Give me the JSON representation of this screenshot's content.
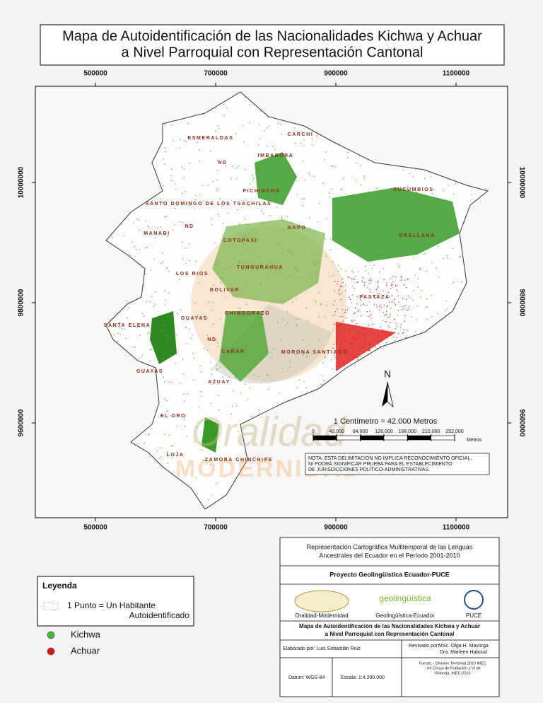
{
  "title": [
    "Mapa de Autoidentificación de las Nacionalidades Kichwa y Achuar",
    "a Nivel Parroquial con Representación Cantonal"
  ],
  "map": {
    "xticks": [
      500000,
      700000,
      900000,
      1100000
    ],
    "yticks": [
      10000000,
      9800000,
      9600000
    ],
    "regions": [
      "ESMERALDAS",
      "CARCHI",
      "IMBABURA",
      "PICHINCHA",
      "SUCUMBIOS",
      "SANTO DOMINGO DE LOS TSACHILAS",
      "NAPO",
      "ORELLANA",
      "MANABI",
      "COTOPAXI",
      "TUNGURAHUA",
      "LOS RIOS",
      "BOLIVAR",
      "PASTAZA",
      "CHIMBORAZO",
      "SANTA ELENA",
      "GUAYAS",
      "CAÑAR",
      "MORONA SANTIAGO",
      "GUAYAS",
      "AZUAY",
      "EL ORO",
      "LOJA",
      "ZAMORA CHINCHIPE",
      "ND",
      "ND",
      "ND"
    ],
    "watermark": [
      "Oralidad",
      "MODERNIDAD"
    ],
    "north": "N",
    "scale": {
      "text": "1 Centímetro = 42.000 Metros",
      "ticks": [
        0,
        {
          "value": 42000,
          "label": "42.000"
        },
        {
          "value": 84000,
          "label": "84.000"
        },
        {
          "value": 126000,
          "label": "126.000"
        },
        {
          "value": 168000,
          "label": "168.000"
        },
        {
          "value": 210000,
          "label": "210.000"
        },
        {
          "value": 252000,
          "label": "252.000"
        }
      ],
      "unit": "Metros"
    },
    "note": [
      "NOTA: ESTA DELIMITACIÓN NO IMPLICA RECONOCIMIENTO OFICIAL,",
      "NI PODRÁ SIGNIFICAR PRUEBA PARA EL ESTABLECIMIENTO",
      "DE JURISDICCIONES POLÍTICO-ADMINISTRATIVAS."
    ]
  },
  "legend": {
    "title": "Leyenda",
    "point": [
      "1 Punto = Un Habitante",
      "Autoidentificado"
    ],
    "items": [
      {
        "label": "Kichwa",
        "color": "#3fbf2f"
      },
      {
        "label": "Achuar",
        "color": "#e01515"
      }
    ]
  },
  "info": {
    "heading": [
      "Representación Cartográfica Multitemporal de las Lenguas",
      "Ancestrales del Ecuador en el Período 2001-2010"
    ],
    "project": "Proyecto  Geolingüística Ecuador-PUCE",
    "logo_text": "geolingüística",
    "logos": [
      "Oralidad-Modernidad",
      "Geolingüística-Ecuador",
      "PUCE"
    ],
    "map_title": [
      "Mapa de Autoidentificación de las Nacionalidades Kichwa y Achuar",
      "a Nivel Parroquial con Representación Cantonal"
    ],
    "author": "Elaborado por:  Luis Sebastián Ruiz",
    "reviewed_label": "Revisado por:",
    "reviewers": [
      "MSc. Olga H. Mayorga",
      "Dra. Marleen Haboud"
    ],
    "datum": "Datum:  WGS-84",
    "scale": "Escala:  1:4.200.000",
    "source": [
      "Fuente:  - División Territorial 2010 INEC",
      "- VII Censo de Población y VI de",
      "Vivienda, INEC-2010"
    ]
  }
}
